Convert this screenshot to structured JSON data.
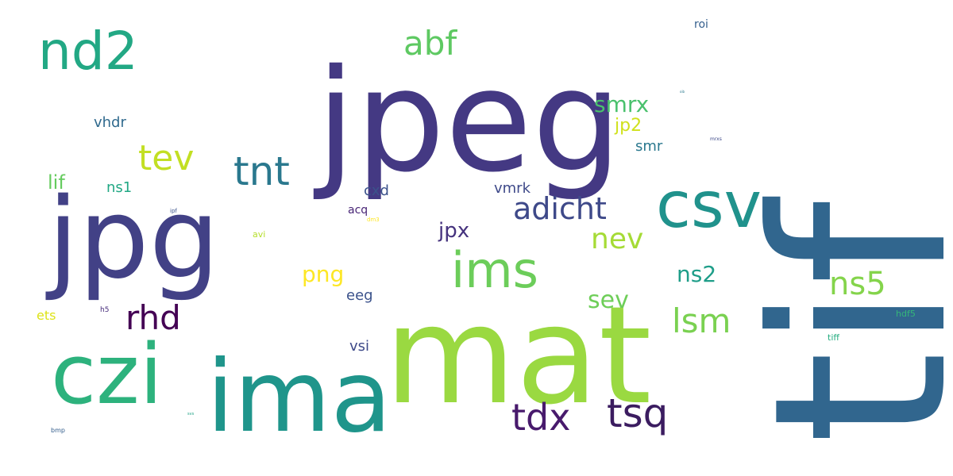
{
  "words": [
    {
      "id": "tif",
      "text": "tif",
      "color": "#31668e",
      "rotated": true
    },
    {
      "id": "jpeg",
      "text": "jpeg",
      "color": "#443983"
    },
    {
      "id": "mat",
      "text": "mat",
      "color": "#9ad941"
    },
    {
      "id": "jpg",
      "text": "jpg",
      "color": "#424186"
    },
    {
      "id": "ima",
      "text": "ima",
      "color": "#1f958b"
    },
    {
      "id": "czi",
      "text": "czi",
      "color": "#2db27d"
    },
    {
      "id": "csv",
      "text": "csv",
      "color": "#20928c"
    },
    {
      "id": "nd2",
      "text": "nd2",
      "color": "#22a884"
    },
    {
      "id": "ims",
      "text": "ims",
      "color": "#6ccd5a"
    },
    {
      "id": "tnt",
      "text": "tnt",
      "color": "#2a788e"
    },
    {
      "id": "tsq",
      "text": "tsq",
      "color": "#3b1c60"
    },
    {
      "id": "tdx",
      "text": "tdx",
      "color": "#481a6c"
    },
    {
      "id": "abf",
      "text": "abf",
      "color": "#5ec962"
    },
    {
      "id": "tev",
      "text": "tev",
      "color": "#c2df23"
    },
    {
      "id": "adicht",
      "text": "adicht",
      "color": "#3e4989"
    },
    {
      "id": "rhd",
      "text": "rhd",
      "color": "#440154"
    },
    {
      "id": "lsm",
      "text": "lsm",
      "color": "#7ad151"
    },
    {
      "id": "ns5",
      "text": "ns5",
      "color": "#84d44b"
    },
    {
      "id": "nev",
      "text": "nev",
      "color": "#a5db36"
    },
    {
      "id": "sev",
      "text": "sev",
      "color": "#6ece58"
    },
    {
      "id": "smrx",
      "text": "smrx",
      "color": "#4ac16d"
    },
    {
      "id": "ns2",
      "text": "ns2",
      "color": "#1f9e89"
    },
    {
      "id": "png",
      "text": "png",
      "color": "#fde725"
    },
    {
      "id": "jpx",
      "text": "jpx",
      "color": "#46337e"
    },
    {
      "id": "jp2",
      "text": "jp2",
      "color": "#d0e11c"
    },
    {
      "id": "vhdr",
      "text": "vhdr",
      "color": "#306a8e"
    },
    {
      "id": "smr",
      "text": "smr",
      "color": "#2a788e"
    },
    {
      "id": "lif",
      "text": "lif",
      "color": "#65cb5e"
    },
    {
      "id": "ns1",
      "text": "ns1",
      "color": "#22a884"
    },
    {
      "id": "cxd",
      "text": "cxd",
      "color": "#3b528b"
    },
    {
      "id": "vmrk",
      "text": "vmrk",
      "color": "#3e4989"
    },
    {
      "id": "eeg",
      "text": "eeg",
      "color": "#3b528b"
    },
    {
      "id": "vsi",
      "text": "vsi",
      "color": "#3e4a89"
    },
    {
      "id": "acq",
      "text": "acq",
      "color": "#482576"
    },
    {
      "id": "ets",
      "text": "ets",
      "color": "#dde318"
    },
    {
      "id": "roi",
      "text": "roi",
      "color": "#355f8d"
    },
    {
      "id": "avi",
      "text": "avi",
      "color": "#b5de2b"
    },
    {
      "id": "hdf5",
      "text": "hdf5",
      "color": "#35b779"
    },
    {
      "id": "tiff",
      "text": "tiff",
      "color": "#27ad81"
    },
    {
      "id": "h5",
      "text": "h5",
      "color": "#472d7b"
    },
    {
      "id": "bmp",
      "text": "bmp",
      "color": "#355f8d"
    },
    {
      "id": "ipf",
      "text": "ipf",
      "color": "#3b528b"
    },
    {
      "id": "dm3",
      "text": "dm3",
      "color": "#fde725"
    },
    {
      "id": "mrxs",
      "text": "mrxs",
      "color": "#3e4989"
    },
    {
      "id": "oib",
      "text": "oib",
      "color": "#2a788e"
    },
    {
      "id": "sws",
      "text": "svs",
      "color": "#20a386"
    }
  ]
}
